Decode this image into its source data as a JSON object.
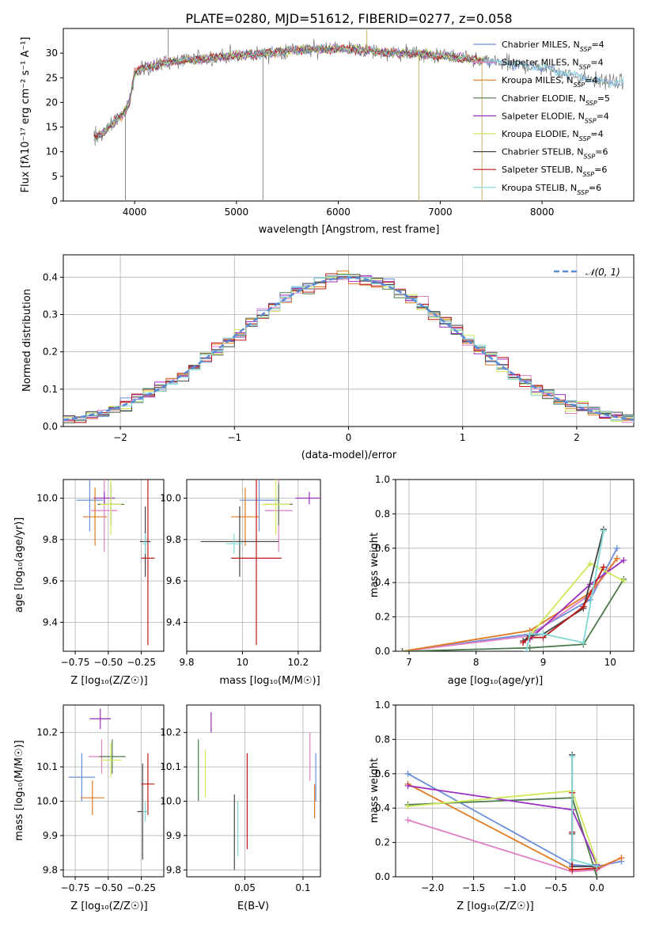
{
  "figure_title": "PLATE=0280, MJD=51612, FIBERID=0277, z=0.058",
  "colors": {
    "Chabrier MILES": "#6a8fd8",
    "Salpeter MILES": "#e07ec4",
    "Kroupa MILES": "#e07a20",
    "Chabrier ELODIE": "#4d7a4d",
    "Salpeter ELODIE": "#9a2fc0",
    "Kroupa ELODIE": "#cfe85a",
    "Chabrier STELIB": "#444444",
    "Salpeter STELIB": "#c01818",
    "Kroupa STELIB": "#7fd8d8"
  },
  "legend_items": [
    {
      "name": "Chabrier MILES",
      "nssp": "4"
    },
    {
      "name": "Salpeter MILES",
      "nssp": "4"
    },
    {
      "name": "Kroupa MILES",
      "nssp": "4"
    },
    {
      "name": "Chabrier ELODIE",
      "nssp": "5"
    },
    {
      "name": "Salpeter ELODIE",
      "nssp": "4"
    },
    {
      "name": "Kroupa ELODIE",
      "nssp": "4"
    },
    {
      "name": "Chabrier STELIB",
      "nssp": "6"
    },
    {
      "name": "Salpeter STELIB",
      "nssp": "6"
    },
    {
      "name": "Kroupa STELIB",
      "nssp": "6"
    }
  ],
  "chart_data": [
    {
      "type": "line",
      "title": "PLATE=0280, MJD=51612, FIBERID=0277, z=0.058",
      "xlabel": "wavelength [Angstrom, rest frame]",
      "ylabel": "Flux [fλ10⁻¹⁷ erg cm⁻² s⁻¹ A⁻¹]",
      "xlim": [
        3300,
        8900
      ],
      "ylim": [
        0,
        35
      ],
      "xticks": [
        4000,
        5000,
        6000,
        7000,
        8000
      ],
      "yticks": [
        0,
        5,
        10,
        15,
        20,
        25,
        30
      ],
      "continuum_x": [
        3600,
        3700,
        3800,
        3900,
        3950,
        4000,
        4100,
        4200,
        4300,
        4500,
        4700,
        5000,
        5300,
        5500,
        5800,
        6000,
        6300,
        6500,
        6700,
        7000,
        7200,
        7400,
        7600,
        7800,
        8000,
        8300,
        8500,
        8800
      ],
      "continuum_y": [
        13,
        14,
        16,
        18,
        20,
        26,
        27,
        27.5,
        28,
        28.5,
        29,
        29.5,
        30,
        30.5,
        30.8,
        31,
        30.5,
        30,
        30,
        29.5,
        29,
        28.5,
        28,
        27.5,
        27,
        25.5,
        24.5,
        24
      ],
      "spikes": [
        {
          "x": 3910,
          "y": 0
        },
        {
          "x": 5260,
          "y": 0
        },
        {
          "x": 6790,
          "y": 0
        },
        {
          "x": 7410,
          "y": 0
        },
        {
          "x": 4330,
          "y": 35
        },
        {
          "x": 6280,
          "y": 35
        }
      ],
      "legend": "right"
    },
    {
      "type": "histogram",
      "xlabel": "(data-model)/error",
      "ylabel": "Normed distribution",
      "xlim": [
        -2.5,
        2.5
      ],
      "ylim": [
        0,
        0.46
      ],
      "xticks": [
        -2,
        -1,
        0,
        1,
        2
      ],
      "yticks": [
        0.0,
        0.1,
        0.2,
        0.3,
        0.4
      ],
      "bin_width": 0.1,
      "reference_curve": "𝒩(0, 1)",
      "legend": "top-right"
    },
    {
      "type": "errorbar",
      "xlabel": "Z [log₁₀(Z/Z☉)]",
      "ylabel": "age  [log₁₀(age/yr)]",
      "xlim": [
        -0.84,
        -0.08
      ],
      "ylim": [
        9.26,
        10.09
      ],
      "xticks": [
        -0.75,
        -0.5,
        -0.25
      ],
      "xtick_labels": [
        "−0.75",
        "−0.50",
        "−0.25"
      ],
      "yticks": [
        9.4,
        9.6,
        9.8,
        10.0
      ],
      "points": [
        {
          "series": "Chabrier MILES",
          "x": -0.64,
          "xerr": 0.1,
          "y": 9.99,
          "yerr": 0.15
        },
        {
          "series": "Salpeter MILES",
          "x": -0.53,
          "xerr": 0.1,
          "y": 9.94,
          "yerr": 0.2
        },
        {
          "series": "Kroupa MILES",
          "x": -0.6,
          "xerr": 0.09,
          "y": 9.91,
          "yerr": 0.14
        },
        {
          "series": "Chabrier ELODIE",
          "x": -0.48,
          "xerr": 0.1,
          "y": 9.97,
          "yerr": 0.1
        },
        {
          "series": "Salpeter ELODIE",
          "x": -0.53,
          "xerr": 0.08,
          "y": 10.0,
          "yerr": 0.03
        },
        {
          "series": "Kroupa ELODIE",
          "x": -0.48,
          "xerr": 0.08,
          "y": 9.97,
          "yerr": 0.15
        },
        {
          "series": "Chabrier STELIB",
          "x": -0.22,
          "xerr": 0.04,
          "y": 9.79,
          "yerr": 0.17
        },
        {
          "series": "Salpeter STELIB",
          "x": -0.2,
          "xerr": 0.05,
          "y": 9.71,
          "yerr": 0.42
        },
        {
          "series": "Kroupa STELIB",
          "x": -0.22,
          "xerr": 0.02,
          "y": 9.78,
          "yerr": 0.05
        }
      ]
    },
    {
      "type": "errorbar",
      "xlabel": "mass [log₁₀(M/M☉)]",
      "ylabel": "",
      "xlim": [
        9.8,
        10.28
      ],
      "ylim": [
        9.26,
        10.09
      ],
      "xticks": [
        9.8,
        10.0,
        10.2
      ],
      "yticks": [
        9.4,
        9.6,
        9.8,
        10.0
      ],
      "points": [
        {
          "series": "Chabrier MILES",
          "x": 10.06,
          "xerr": 0.07,
          "y": 9.99,
          "yerr": 0.15
        },
        {
          "series": "Salpeter MILES",
          "x": 10.13,
          "xerr": 0.05,
          "y": 9.94,
          "yerr": 0.2
        },
        {
          "series": "Kroupa MILES",
          "x": 10.01,
          "xerr": 0.05,
          "y": 9.91,
          "yerr": 0.14
        },
        {
          "series": "Chabrier ELODIE",
          "x": 10.13,
          "xerr": 0.05,
          "y": 9.97,
          "yerr": 0.1
        },
        {
          "series": "Salpeter ELODIE",
          "x": 10.24,
          "xerr": 0.05,
          "y": 10.0,
          "yerr": 0.03
        },
        {
          "series": "Kroupa ELODIE",
          "x": 10.12,
          "xerr": 0.05,
          "y": 9.97,
          "yerr": 0.15
        },
        {
          "series": "Chabrier STELIB",
          "x": 9.99,
          "xerr": 0.14,
          "y": 9.79,
          "yerr": 0.17
        },
        {
          "series": "Salpeter STELIB",
          "x": 10.05,
          "xerr": 0.09,
          "y": 9.71,
          "yerr": 0.42
        },
        {
          "series": "Kroupa STELIB",
          "x": 9.97,
          "xerr": 0.03,
          "y": 9.78,
          "yerr": 0.05
        }
      ]
    },
    {
      "type": "line",
      "xlabel": "age  [log₁₀(age/yr)]",
      "ylabel": "mass weight",
      "xlim": [
        6.8,
        10.35
      ],
      "ylim": [
        0,
        1.0
      ],
      "xticks": [
        7,
        8,
        9,
        10
      ],
      "yticks": [
        0.0,
        0.2,
        0.4,
        0.6,
        0.8,
        1.0
      ],
      "series": [
        {
          "name": "Chabrier MILES",
          "x": [
            6.9,
            8.8,
            9.7,
            10.1
          ],
          "y": [
            0.0,
            0.1,
            0.3,
            0.6
          ]
        },
        {
          "name": "Salpeter MILES",
          "x": [
            6.9,
            8.8,
            9.7,
            10.1
          ],
          "y": [
            0.0,
            0.09,
            0.33,
            0.54
          ]
        },
        {
          "name": "Kroupa MILES",
          "x": [
            6.9,
            8.8,
            9.7,
            10.1
          ],
          "y": [
            0.0,
            0.12,
            0.34,
            0.54
          ]
        },
        {
          "name": "Chabrier ELODIE",
          "x": [
            6.9,
            8.8,
            9.6,
            10.2
          ],
          "y": [
            0.0,
            0.02,
            0.04,
            0.42
          ]
        },
        {
          "name": "Salpeter ELODIE",
          "x": [
            8.8,
            9.7,
            10.2
          ],
          "y": [
            0.07,
            0.39,
            0.53
          ]
        },
        {
          "name": "Kroupa ELODIE",
          "x": [
            8.8,
            9.7,
            10.2
          ],
          "y": [
            0.09,
            0.51,
            0.41
          ]
        },
        {
          "name": "Chabrier STELIB",
          "x": [
            8.7,
            8.8,
            9.0,
            9.6,
            9.9
          ],
          "y": [
            0.06,
            0.09,
            0.1,
            0.25,
            0.71
          ]
        },
        {
          "name": "Salpeter STELIB",
          "x": [
            8.7,
            8.8,
            9.0,
            9.6,
            9.9
          ],
          "y": [
            0.05,
            0.08,
            0.08,
            0.26,
            0.49
          ]
        },
        {
          "name": "Kroupa STELIB",
          "x": [
            8.75,
            8.8,
            9.0,
            9.6,
            9.9
          ],
          "y": [
            0.0,
            0.1,
            0.1,
            0.05,
            0.7
          ]
        }
      ]
    },
    {
      "type": "errorbar",
      "xlabel": "Z [log₁₀(Z/Z☉)]",
      "ylabel": "mass [log₁₀(M/M☉)]",
      "xlim": [
        -0.84,
        -0.08
      ],
      "ylim": [
        9.78,
        10.28
      ],
      "xticks": [
        -0.75,
        -0.5,
        -0.25
      ],
      "xtick_labels": [
        "−0.75",
        "−0.50",
        "−0.25"
      ],
      "yticks": [
        9.8,
        9.9,
        10.0,
        10.1,
        10.2
      ],
      "points": [
        {
          "series": "Chabrier MILES",
          "x": -0.7,
          "xerr": 0.1,
          "y": 10.07,
          "yerr": 0.07
        },
        {
          "series": "Salpeter MILES",
          "x": -0.55,
          "xerr": 0.1,
          "y": 10.13,
          "yerr": 0.05
        },
        {
          "series": "Kroupa MILES",
          "x": -0.62,
          "xerr": 0.09,
          "y": 10.01,
          "yerr": 0.05
        },
        {
          "series": "Chabrier ELODIE",
          "x": -0.47,
          "xerr": 0.1,
          "y": 10.13,
          "yerr": 0.05
        },
        {
          "series": "Salpeter ELODIE",
          "x": -0.56,
          "xerr": 0.08,
          "y": 10.24,
          "yerr": 0.03
        },
        {
          "series": "Kroupa ELODIE",
          "x": -0.48,
          "xerr": 0.08,
          "y": 10.12,
          "yerr": 0.05
        },
        {
          "series": "Chabrier STELIB",
          "x": -0.24,
          "xerr": 0.04,
          "y": 9.97,
          "yerr": 0.14
        },
        {
          "series": "Salpeter STELIB",
          "x": -0.2,
          "xerr": 0.05,
          "y": 10.05,
          "yerr": 0.09
        },
        {
          "series": "Kroupa STELIB",
          "x": -0.22,
          "xerr": 0.02,
          "y": 9.97,
          "yerr": 0.03
        }
      ]
    },
    {
      "type": "errorbar",
      "xlabel": "E(B-V)",
      "ylabel": "",
      "xlim": [
        0.0,
        0.115
      ],
      "ylim": [
        9.78,
        10.28
      ],
      "xticks": [
        0.05,
        0.1
      ],
      "yticks": [
        9.8,
        9.9,
        10.0,
        10.1,
        10.2
      ],
      "points": [
        {
          "series": "Chabrier MILES",
          "x": 0.111,
          "xerr": 0,
          "y": 10.07,
          "yerr": 0.07
        },
        {
          "series": "Salpeter MILES",
          "x": 0.106,
          "xerr": 0,
          "y": 10.13,
          "yerr": 0.07
        },
        {
          "series": "Kroupa MILES",
          "x": 0.11,
          "xerr": 0,
          "y": 10.0,
          "yerr": 0.05
        },
        {
          "series": "Chabrier ELODIE",
          "x": 0.01,
          "xerr": 0,
          "y": 10.09,
          "yerr": 0.09
        },
        {
          "series": "Salpeter ELODIE",
          "x": 0.021,
          "xerr": 0,
          "y": 10.23,
          "yerr": 0.03
        },
        {
          "series": "Kroupa ELODIE",
          "x": 0.016,
          "xerr": 0,
          "y": 10.08,
          "yerr": 0.07
        },
        {
          "series": "Chabrier STELIB",
          "x": 0.041,
          "xerr": 0,
          "y": 9.91,
          "yerr": 0.11
        },
        {
          "series": "Salpeter STELIB",
          "x": 0.052,
          "xerr": 0,
          "y": 10.0,
          "yerr": 0.14
        },
        {
          "series": "Kroupa STELIB",
          "x": 0.044,
          "xerr": 0,
          "y": 9.92,
          "yerr": 0.08
        }
      ]
    },
    {
      "type": "line",
      "xlabel": "Z [log₁₀(Z/Z☉)]",
      "ylabel": "mass weight",
      "xlim": [
        -2.45,
        0.45
      ],
      "ylim": [
        0,
        1.0
      ],
      "xticks": [
        -2.0,
        -1.5,
        -1.0,
        -0.5,
        0.0
      ],
      "xtick_labels": [
        "−2.0",
        "−1.5",
        "−1.0",
        "−0.5",
        "0.0"
      ],
      "yticks": [
        0.0,
        0.2,
        0.4,
        0.6,
        0.8,
        1.0
      ],
      "series": [
        {
          "name": "Chabrier MILES",
          "x": [
            -2.3,
            -0.3,
            0.0,
            0.3
          ],
          "y": [
            0.6,
            0.07,
            0.06,
            0.09
          ]
        },
        {
          "name": "Salpeter MILES",
          "x": [
            -2.3,
            -0.3,
            0.0,
            0.3
          ],
          "y": [
            0.33,
            0.03,
            0.04,
            0.11
          ]
        },
        {
          "name": "Kroupa MILES",
          "x": [
            -2.3,
            -0.3,
            0.0,
            0.3
          ],
          "y": [
            0.54,
            0.04,
            0.05,
            0.11
          ]
        },
        {
          "name": "Chabrier ELODIE",
          "x": [
            -2.3,
            -0.3,
            0.0
          ],
          "y": [
            0.42,
            0.46,
            0.0
          ]
        },
        {
          "name": "Salpeter ELODIE",
          "x": [
            -2.3,
            -0.3,
            0.0
          ],
          "y": [
            0.53,
            0.39,
            0.07
          ]
        },
        {
          "name": "Kroupa ELODIE",
          "x": [
            -2.3,
            -0.3,
            0.0
          ],
          "y": [
            0.41,
            0.5,
            0.08
          ]
        },
        {
          "name": "Chabrier STELIB",
          "x": [
            -0.3,
            -0.3,
            -0.3,
            0.0
          ],
          "y": [
            0.71,
            0.25,
            0.06,
            0.06
          ]
        },
        {
          "name": "Salpeter STELIB",
          "x": [
            -0.3,
            -0.3,
            -0.3,
            0.0
          ],
          "y": [
            0.49,
            0.26,
            0.04,
            0.05
          ]
        },
        {
          "name": "Kroupa STELIB",
          "x": [
            -0.3,
            -0.3,
            0.0
          ],
          "y": [
            0.7,
            0.1,
            0.06
          ]
        }
      ]
    }
  ]
}
